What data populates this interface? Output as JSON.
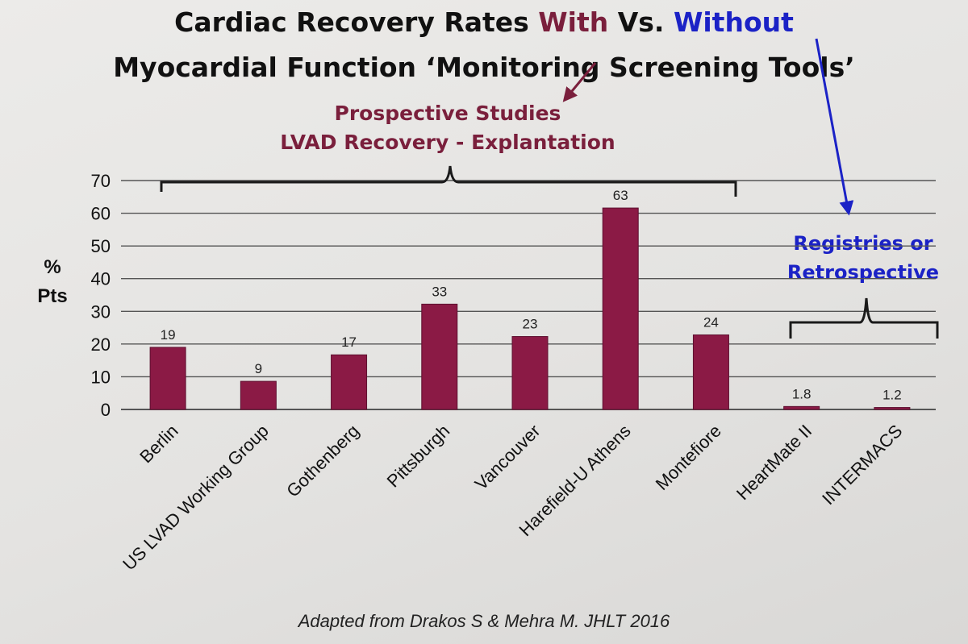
{
  "title": {
    "line1_part1": "Cardiac Recovery Rates ",
    "line1_with": "With",
    "line1_part2": " Vs. ",
    "line1_without": "Without",
    "line2": "Myocardial Function ‘Monitoring Screening Tools’"
  },
  "annotations": {
    "prospective_line1": "Prospective Studies",
    "prospective_line2": "LVAD Recovery - Explantation",
    "registries_line1": "Registries or",
    "registries_line2": "Retrospective"
  },
  "footer": "Adapted from Drakos S & Mehra M. JHLT 2016",
  "colors": {
    "bar": "#8b1a45",
    "with_text": "#7a1f3c",
    "without_text": "#1b22c6",
    "gridline": "#555555"
  },
  "chart_data": {
    "type": "bar",
    "ylabel_line1": "%",
    "ylabel_line2": "Pts",
    "ylim": [
      0,
      70
    ],
    "yticks": [
      0,
      10,
      20,
      30,
      40,
      50,
      60,
      70
    ],
    "grid": true,
    "categories": [
      "Berlin",
      "US LVAD Working Group",
      "Gothenberg",
      "Pittsburgh",
      "Vancouver",
      "Harefield-U Athens",
      "Montefiore",
      "HeartMate II",
      "INTERMACS"
    ],
    "values": [
      19,
      9,
      17,
      33,
      23,
      63,
      24,
      1.8,
      1.2
    ],
    "data_labels": [
      "19",
      "9",
      "17",
      "33",
      "23",
      "63",
      "24",
      "1.8",
      "1.2"
    ],
    "bar_heights_estimated": [
      19,
      8.6,
      16.7,
      32.2,
      22.3,
      61.6,
      22.8,
      0.9,
      0.6
    ]
  }
}
